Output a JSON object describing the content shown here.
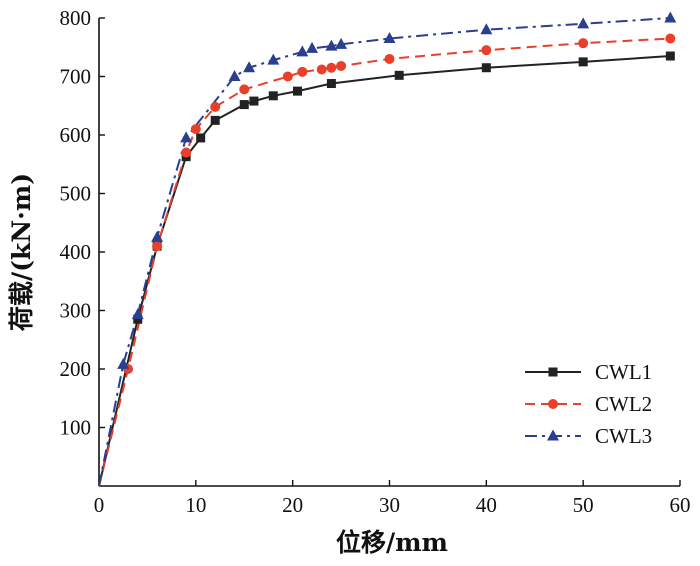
{
  "chart_data": {
    "type": "line",
    "title": "",
    "xlabel": "位移/mm",
    "ylabel": "荷载/(kN·m)",
    "xlim": [
      0,
      60
    ],
    "ylim": [
      0,
      800
    ],
    "xticks": [
      "0",
      "10",
      "20",
      "30",
      "40",
      "50",
      "60"
    ],
    "yticks": [
      "100",
      "200",
      "300",
      "400",
      "500",
      "600",
      "700",
      "800"
    ],
    "grid": false,
    "legend_position": "bottom-right",
    "series": [
      {
        "name": "CWL1",
        "color": "#222222",
        "marker": "square",
        "dash": "solid",
        "x": [
          0,
          4,
          6,
          9,
          10.5,
          12,
          15,
          16,
          18,
          20.5,
          24,
          31,
          40,
          50,
          59
        ],
        "y": [
          0,
          285,
          410,
          563,
          595,
          625,
          652,
          658,
          667,
          675,
          688,
          702,
          715,
          725,
          735
        ]
      },
      {
        "name": "CWL2",
        "color": "#e8402a",
        "marker": "circle",
        "dash": "dashed",
        "x": [
          0,
          3,
          6,
          9,
          10,
          12,
          15,
          19.5,
          21,
          23,
          24,
          25,
          30,
          40,
          50,
          59
        ],
        "y": [
          0,
          200,
          410,
          570,
          610,
          648,
          678,
          700,
          708,
          712,
          715,
          718,
          730,
          745,
          757,
          765
        ]
      },
      {
        "name": "CWL3",
        "color": "#2a3f8f",
        "marker": "triangle",
        "dash": "dashdot",
        "x": [
          0,
          2.5,
          4,
          6,
          9,
          14,
          15.5,
          18,
          21,
          22,
          24,
          25,
          30,
          40,
          50,
          59
        ],
        "y": [
          0,
          208,
          293,
          425,
          595,
          700,
          715,
          728,
          742,
          748,
          752,
          755,
          765,
          780,
          790,
          800
        ]
      }
    ]
  }
}
